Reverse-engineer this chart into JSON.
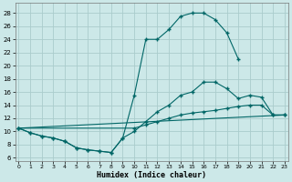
{
  "background_color": "#cce8e8",
  "grid_color": "#aacccc",
  "line_color": "#006666",
  "xlim": [
    -0.3,
    23.3
  ],
  "ylim": [
    5.5,
    29.5
  ],
  "xlabel": "Humidex (Indice chaleur)",
  "yticks": [
    6,
    8,
    10,
    12,
    14,
    16,
    18,
    20,
    22,
    24,
    26,
    28
  ],
  "xticks": [
    0,
    1,
    2,
    3,
    4,
    5,
    6,
    7,
    8,
    9,
    10,
    11,
    12,
    13,
    14,
    15,
    16,
    17,
    18,
    19,
    20,
    21,
    22,
    23
  ],
  "line1_x": [
    0,
    1,
    2,
    3,
    4,
    5,
    6,
    7,
    8,
    9,
    10,
    11,
    12,
    13,
    14,
    15,
    16,
    17,
    18,
    19
  ],
  "line1_y": [
    10.5,
    9.8,
    9.3,
    9.0,
    8.5,
    7.5,
    7.2,
    7.0,
    6.8,
    9.0,
    15.5,
    24.0,
    24.0,
    25.5,
    27.5,
    28.0,
    28.0,
    27.0,
    25.0,
    21.0
  ],
  "line2_x": [
    0,
    1,
    2,
    3,
    4,
    5,
    6,
    7,
    8,
    9,
    10,
    11,
    12,
    13,
    14,
    15,
    16,
    17,
    18,
    19,
    20,
    21,
    22,
    23
  ],
  "line2_y": [
    10.5,
    9.8,
    9.3,
    9.0,
    8.5,
    7.5,
    7.2,
    7.0,
    6.8,
    9.0,
    10.0,
    11.5,
    13.0,
    14.0,
    15.5,
    16.0,
    17.5,
    17.5,
    16.5,
    15.0,
    15.5,
    15.2,
    12.5,
    12.5
  ],
  "line3_x": [
    0,
    10,
    11,
    12,
    13,
    14,
    15,
    16,
    17,
    18,
    19,
    20,
    21,
    22,
    23
  ],
  "line3_y": [
    10.5,
    10.5,
    11.0,
    11.5,
    12.0,
    12.5,
    12.8,
    13.0,
    13.2,
    13.5,
    13.8,
    14.0,
    14.0,
    12.5,
    12.5
  ],
  "line4_x": [
    0,
    23
  ],
  "line4_y": [
    10.5,
    12.5
  ]
}
